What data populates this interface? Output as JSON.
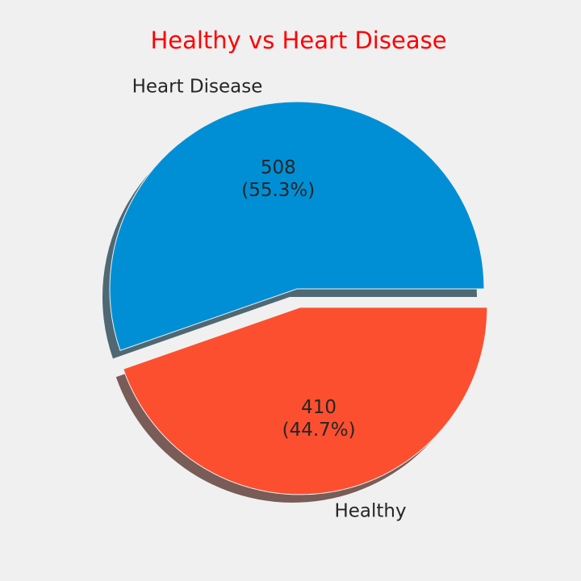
{
  "chart_data": {
    "type": "pie",
    "title": "Healthy vs Heart Disease",
    "title_color": "#ff0000",
    "labels": [
      "Heart Disease",
      "Healthy"
    ],
    "values": [
      508,
      410
    ],
    "percent_labels": [
      "(55.3%)",
      "(44.7%)"
    ],
    "value_labels": [
      "508",
      "410"
    ],
    "colors": [
      "#008fd5",
      "#fc4f30"
    ],
    "explode": [
      0,
      0.1
    ],
    "shadow": true,
    "start_angle_deg": 0,
    "direction": "counterclockwise",
    "background": "#f0f0f0"
  }
}
